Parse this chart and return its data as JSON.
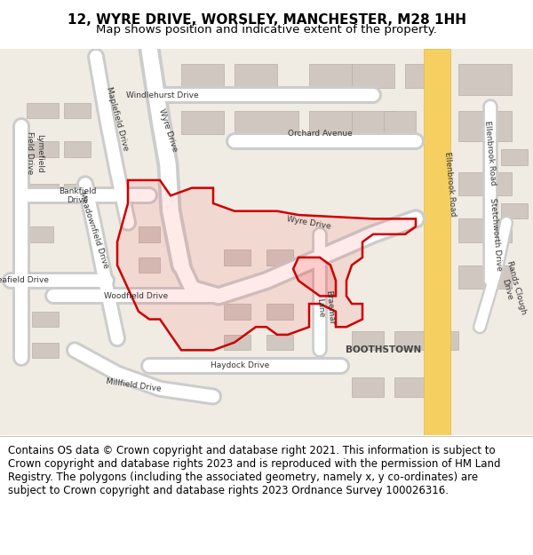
{
  "title_line1": "12, WYRE DRIVE, WORSLEY, MANCHESTER, M28 1HH",
  "title_line2": "Map shows position and indicative extent of the property.",
  "footer_text": "Contains OS data © Crown copyright and database right 2021. This information is subject to Crown copyright and database rights 2023 and is reproduced with the permission of HM Land Registry. The polygons (including the associated geometry, namely x, y co-ordinates) are subject to Crown copyright and database rights 2023 Ordnance Survey 100026316.",
  "title_fontsize": 11,
  "subtitle_fontsize": 9.5,
  "footer_fontsize": 8.5,
  "map_bg": "#f0ece4",
  "road_color": "#ffffff",
  "road_outline": "#cccccc",
  "building_color": "#d8d0c8",
  "building_outline": "#b8b0a8",
  "yellow_road": "#f0c040",
  "red_polygon_color": "#cc0000",
  "red_polygon_fill": "#ff000020",
  "footer_bg": "#ffffff",
  "border_color": "#888888"
}
